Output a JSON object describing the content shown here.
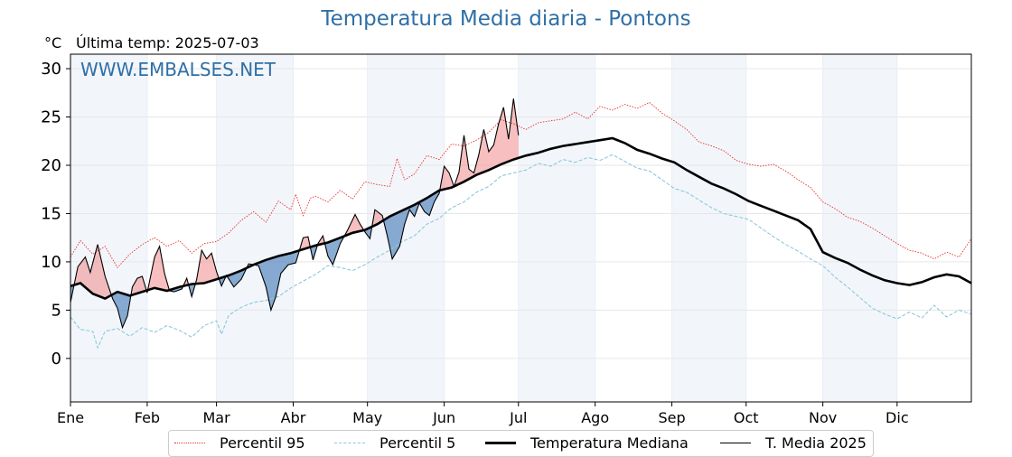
{
  "chart_data": {
    "type": "line",
    "title": "Temperatura Media diaria - Pontons",
    "unit_label": "°C",
    "last_temp_label": "Última temp: 2025-07-03",
    "watermark": "WWW.EMBALSES.NET",
    "ylim": [
      -4.5,
      31.5
    ],
    "yticks": [
      0,
      5,
      10,
      15,
      20,
      25,
      30
    ],
    "x_range_days": [
      1,
      365
    ],
    "month_ticks": [
      {
        "label": "Ene",
        "day": 1
      },
      {
        "label": "Feb",
        "day": 32
      },
      {
        "label": "Mar",
        "day": 60
      },
      {
        "label": "Abr",
        "day": 91
      },
      {
        "label": "May",
        "day": 121
      },
      {
        "label": "Jun",
        "day": 152
      },
      {
        "label": "Jul",
        "day": 182
      },
      {
        "label": "Ago",
        "day": 213
      },
      {
        "label": "Sep",
        "day": 244
      },
      {
        "label": "Oct",
        "day": 274
      },
      {
        "label": "Nov",
        "day": 305
      },
      {
        "label": "Dic",
        "day": 335
      }
    ],
    "shaded_month_bands": [
      [
        1,
        32
      ],
      [
        60,
        91
      ],
      [
        121,
        152
      ],
      [
        182,
        213
      ],
      [
        244,
        274
      ],
      [
        305,
        335
      ]
    ],
    "grid": true,
    "legend_position": "bottom",
    "series": [
      {
        "name": "Percentil 95",
        "style": "dotted",
        "color": "#e8312a",
        "points": [
          [
            1,
            10.5
          ],
          [
            5,
            12.2
          ],
          [
            10,
            10.8
          ],
          [
            15,
            11.6
          ],
          [
            20,
            9.4
          ],
          [
            25,
            10.8
          ],
          [
            30,
            11.8
          ],
          [
            35,
            12.5
          ],
          [
            40,
            11.6
          ],
          [
            45,
            12.2
          ],
          [
            50,
            10.9
          ],
          [
            55,
            11.9
          ],
          [
            60,
            12.1
          ],
          [
            65,
            13.0
          ],
          [
            70,
            14.3
          ],
          [
            75,
            15.2
          ],
          [
            80,
            14.1
          ],
          [
            85,
            16.3
          ],
          [
            90,
            15.4
          ],
          [
            92,
            17.0
          ],
          [
            95,
            14.8
          ],
          [
            98,
            16.6
          ],
          [
            100,
            16.8
          ],
          [
            105,
            16.2
          ],
          [
            110,
            17.4
          ],
          [
            115,
            16.5
          ],
          [
            120,
            18.3
          ],
          [
            125,
            18.0
          ],
          [
            130,
            17.8
          ],
          [
            133,
            20.7
          ],
          [
            136,
            18.5
          ],
          [
            140,
            19.1
          ],
          [
            145,
            21.0
          ],
          [
            150,
            20.6
          ],
          [
            155,
            22.2
          ],
          [
            160,
            22.0
          ],
          [
            165,
            22.6
          ],
          [
            170,
            23.4
          ],
          [
            175,
            24.7
          ],
          [
            180,
            24.3
          ],
          [
            185,
            23.7
          ],
          [
            190,
            24.4
          ],
          [
            195,
            24.6
          ],
          [
            200,
            24.8
          ],
          [
            205,
            25.5
          ],
          [
            210,
            24.8
          ],
          [
            215,
            26.1
          ],
          [
            220,
            25.7
          ],
          [
            225,
            26.3
          ],
          [
            230,
            25.9
          ],
          [
            235,
            26.5
          ],
          [
            240,
            25.4
          ],
          [
            245,
            24.6
          ],
          [
            250,
            23.7
          ],
          [
            255,
            22.4
          ],
          [
            260,
            22.0
          ],
          [
            265,
            21.5
          ],
          [
            270,
            20.5
          ],
          [
            275,
            20.1
          ],
          [
            280,
            19.9
          ],
          [
            285,
            20.1
          ],
          [
            290,
            19.4
          ],
          [
            295,
            18.5
          ],
          [
            300,
            17.7
          ],
          [
            305,
            16.2
          ],
          [
            310,
            15.5
          ],
          [
            315,
            14.6
          ],
          [
            320,
            14.2
          ],
          [
            325,
            13.5
          ],
          [
            330,
            12.7
          ],
          [
            335,
            11.9
          ],
          [
            340,
            11.2
          ],
          [
            345,
            10.9
          ],
          [
            350,
            10.3
          ],
          [
            355,
            11.0
          ],
          [
            360,
            10.5
          ],
          [
            365,
            12.4
          ]
        ]
      },
      {
        "name": "Percentil 5",
        "style": "dashed",
        "color": "#8ec8da",
        "points": [
          [
            1,
            4.3
          ],
          [
            5,
            3.0
          ],
          [
            10,
            2.8
          ],
          [
            12,
            1.1
          ],
          [
            15,
            2.8
          ],
          [
            20,
            3.1
          ],
          [
            25,
            2.3
          ],
          [
            30,
            3.2
          ],
          [
            35,
            2.7
          ],
          [
            40,
            3.4
          ],
          [
            45,
            2.9
          ],
          [
            50,
            2.2
          ],
          [
            55,
            3.4
          ],
          [
            60,
            3.9
          ],
          [
            62,
            2.5
          ],
          [
            65,
            4.5
          ],
          [
            70,
            5.3
          ],
          [
            75,
            5.8
          ],
          [
            80,
            6.0
          ],
          [
            85,
            6.4
          ],
          [
            90,
            7.3
          ],
          [
            95,
            8.0
          ],
          [
            100,
            8.7
          ],
          [
            105,
            9.6
          ],
          [
            110,
            9.4
          ],
          [
            115,
            9.1
          ],
          [
            120,
            9.7
          ],
          [
            125,
            10.5
          ],
          [
            130,
            11.2
          ],
          [
            135,
            12.1
          ],
          [
            140,
            12.7
          ],
          [
            145,
            13.9
          ],
          [
            150,
            14.5
          ],
          [
            155,
            15.6
          ],
          [
            160,
            16.2
          ],
          [
            165,
            17.2
          ],
          [
            170,
            17.8
          ],
          [
            175,
            18.9
          ],
          [
            180,
            19.2
          ],
          [
            185,
            19.5
          ],
          [
            190,
            20.2
          ],
          [
            195,
            19.9
          ],
          [
            200,
            20.6
          ],
          [
            205,
            20.3
          ],
          [
            210,
            20.8
          ],
          [
            215,
            20.5
          ],
          [
            220,
            21.1
          ],
          [
            225,
            20.4
          ],
          [
            230,
            19.7
          ],
          [
            235,
            19.4
          ],
          [
            240,
            18.5
          ],
          [
            245,
            17.6
          ],
          [
            250,
            17.2
          ],
          [
            255,
            16.4
          ],
          [
            260,
            15.6
          ],
          [
            265,
            15.0
          ],
          [
            270,
            14.7
          ],
          [
            275,
            14.4
          ],
          [
            280,
            13.5
          ],
          [
            285,
            12.6
          ],
          [
            290,
            11.8
          ],
          [
            295,
            11.1
          ],
          [
            300,
            10.3
          ],
          [
            305,
            9.6
          ],
          [
            310,
            8.4
          ],
          [
            315,
            7.4
          ],
          [
            320,
            6.3
          ],
          [
            325,
            5.2
          ],
          [
            330,
            4.6
          ],
          [
            335,
            4.1
          ],
          [
            340,
            4.8
          ],
          [
            345,
            4.2
          ],
          [
            350,
            5.5
          ],
          [
            355,
            4.3
          ],
          [
            360,
            5.0
          ],
          [
            365,
            4.6
          ]
        ]
      },
      {
        "name": "Temperatura Mediana",
        "style": "solid-thick",
        "color": "#000000",
        "points": [
          [
            1,
            7.5
          ],
          [
            5,
            7.8
          ],
          [
            10,
            6.7
          ],
          [
            15,
            6.2
          ],
          [
            20,
            6.9
          ],
          [
            25,
            6.5
          ],
          [
            30,
            6.9
          ],
          [
            35,
            7.3
          ],
          [
            40,
            7.0
          ],
          [
            45,
            7.4
          ],
          [
            50,
            7.7
          ],
          [
            55,
            7.8
          ],
          [
            60,
            8.2
          ],
          [
            65,
            8.6
          ],
          [
            70,
            9.1
          ],
          [
            75,
            9.7
          ],
          [
            80,
            10.2
          ],
          [
            85,
            10.6
          ],
          [
            90,
            10.9
          ],
          [
            95,
            11.3
          ],
          [
            100,
            11.7
          ],
          [
            105,
            12.0
          ],
          [
            110,
            12.5
          ],
          [
            115,
            13.0
          ],
          [
            120,
            13.3
          ],
          [
            125,
            13.9
          ],
          [
            130,
            14.7
          ],
          [
            135,
            15.3
          ],
          [
            140,
            15.9
          ],
          [
            145,
            16.6
          ],
          [
            150,
            17.4
          ],
          [
            155,
            17.7
          ],
          [
            160,
            18.3
          ],
          [
            165,
            19.0
          ],
          [
            170,
            19.5
          ],
          [
            175,
            20.1
          ],
          [
            180,
            20.6
          ],
          [
            185,
            21.0
          ],
          [
            190,
            21.3
          ],
          [
            195,
            21.7
          ],
          [
            200,
            22.0
          ],
          [
            205,
            22.2
          ],
          [
            210,
            22.4
          ],
          [
            215,
            22.6
          ],
          [
            220,
            22.8
          ],
          [
            225,
            22.3
          ],
          [
            230,
            21.6
          ],
          [
            235,
            21.2
          ],
          [
            240,
            20.7
          ],
          [
            245,
            20.3
          ],
          [
            250,
            19.5
          ],
          [
            255,
            18.8
          ],
          [
            260,
            18.1
          ],
          [
            265,
            17.6
          ],
          [
            270,
            17.0
          ],
          [
            275,
            16.3
          ],
          [
            280,
            15.8
          ],
          [
            285,
            15.3
          ],
          [
            290,
            14.8
          ],
          [
            295,
            14.3
          ],
          [
            300,
            13.4
          ],
          [
            305,
            11.0
          ],
          [
            310,
            10.4
          ],
          [
            315,
            9.9
          ],
          [
            320,
            9.2
          ],
          [
            325,
            8.6
          ],
          [
            330,
            8.1
          ],
          [
            335,
            7.8
          ],
          [
            340,
            7.6
          ],
          [
            345,
            7.9
          ],
          [
            350,
            8.4
          ],
          [
            355,
            8.7
          ],
          [
            360,
            8.5
          ],
          [
            365,
            7.8
          ]
        ]
      },
      {
        "name": "T. Media 2025",
        "style": "solid-thin",
        "color": "#000000",
        "points": [
          [
            1,
            5.8
          ],
          [
            4,
            9.5
          ],
          [
            7,
            10.5
          ],
          [
            9,
            8.9
          ],
          [
            12,
            11.8
          ],
          [
            15,
            8.5
          ],
          [
            18,
            6.2
          ],
          [
            20,
            5.2
          ],
          [
            22,
            3.2
          ],
          [
            24,
            4.4
          ],
          [
            26,
            7.4
          ],
          [
            28,
            8.3
          ],
          [
            30,
            8.5
          ],
          [
            32,
            6.8
          ],
          [
            35,
            10.5
          ],
          [
            37,
            11.6
          ],
          [
            39,
            8.8
          ],
          [
            41,
            7.0
          ],
          [
            43,
            6.9
          ],
          [
            46,
            7.2
          ],
          [
            48,
            8.3
          ],
          [
            50,
            6.4
          ],
          [
            52,
            8.2
          ],
          [
            54,
            11.2
          ],
          [
            56,
            10.3
          ],
          [
            58,
            10.9
          ],
          [
            60,
            9.0
          ],
          [
            62,
            7.5
          ],
          [
            64,
            8.6
          ],
          [
            67,
            7.4
          ],
          [
            70,
            8.2
          ],
          [
            73,
            9.8
          ],
          [
            77,
            9.6
          ],
          [
            80,
            7.4
          ],
          [
            82,
            5.0
          ],
          [
            84,
            6.4
          ],
          [
            86,
            8.8
          ],
          [
            89,
            9.7
          ],
          [
            92,
            9.9
          ],
          [
            95,
            12.5
          ],
          [
            97,
            12.6
          ],
          [
            99,
            10.2
          ],
          [
            101,
            11.9
          ],
          [
            103,
            12.7
          ],
          [
            105,
            10.6
          ],
          [
            107,
            9.7
          ],
          [
            110,
            11.9
          ],
          [
            113,
            13.3
          ],
          [
            116,
            14.9
          ],
          [
            118,
            13.9
          ],
          [
            120,
            13.1
          ],
          [
            122,
            12.4
          ],
          [
            124,
            15.4
          ],
          [
            127,
            14.8
          ],
          [
            129,
            12.7
          ],
          [
            131,
            10.3
          ],
          [
            134,
            11.6
          ],
          [
            136,
            13.9
          ],
          [
            138,
            15.4
          ],
          [
            140,
            14.7
          ],
          [
            142,
            16.1
          ],
          [
            144,
            15.2
          ],
          [
            146,
            14.8
          ],
          [
            148,
            16.2
          ],
          [
            150,
            17.1
          ],
          [
            152,
            19.9
          ],
          [
            154,
            19.2
          ],
          [
            156,
            17.8
          ],
          [
            158,
            19.3
          ],
          [
            160,
            23.1
          ],
          [
            162,
            19.6
          ],
          [
            164,
            19.2
          ],
          [
            166,
            21.1
          ],
          [
            168,
            23.7
          ],
          [
            170,
            21.4
          ],
          [
            172,
            22.1
          ],
          [
            174,
            24.3
          ],
          [
            176,
            26.0
          ],
          [
            178,
            22.7
          ],
          [
            180,
            26.9
          ],
          [
            182,
            23.1
          ]
        ]
      }
    ]
  }
}
